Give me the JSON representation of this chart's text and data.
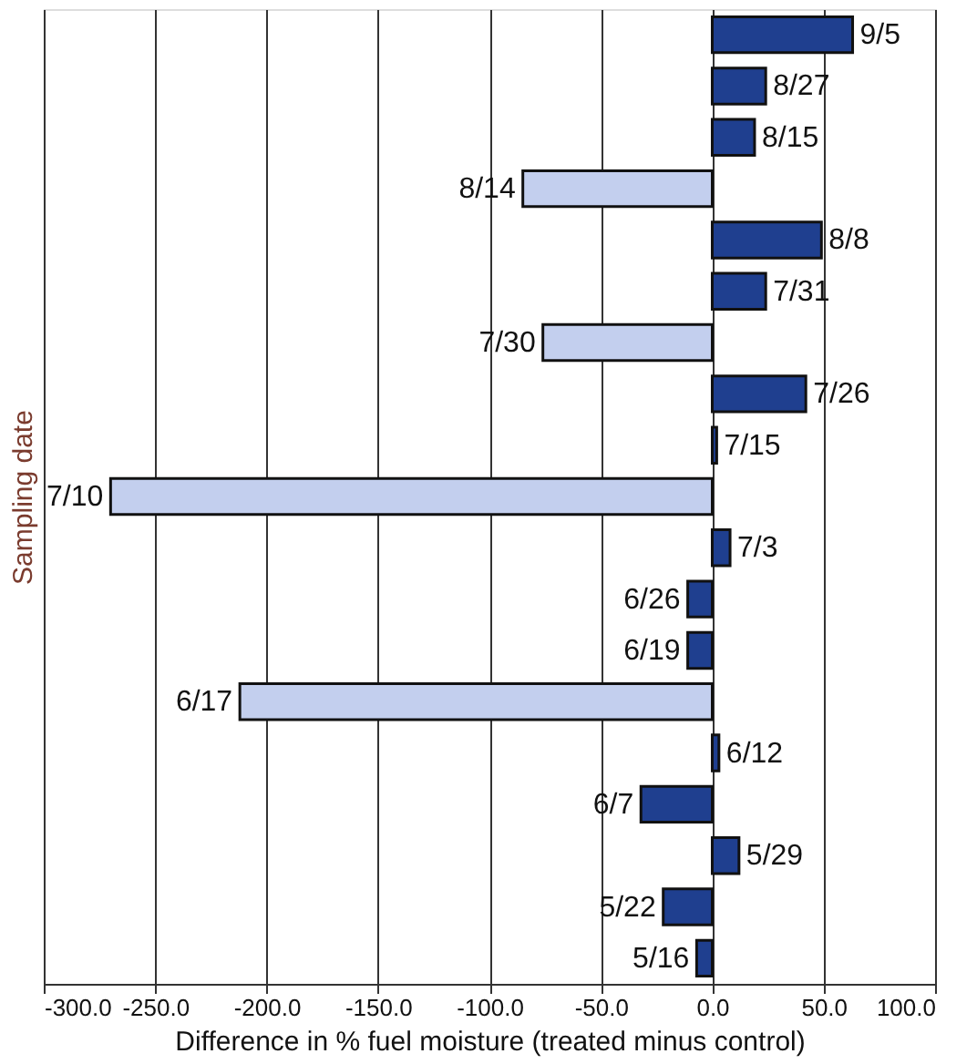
{
  "chart_data": {
    "type": "bar",
    "orientation": "horizontal",
    "xlabel": "Difference in % fuel moisture (treated minus control)",
    "ylabel": "Sampling date",
    "categories": [
      "9/5",
      "8/27",
      "8/15",
      "8/14",
      "8/8",
      "7/31",
      "7/30",
      "7/26",
      "7/15",
      "7/10",
      "7/3",
      "6/26",
      "6/19",
      "6/17",
      "6/12",
      "6/7",
      "5/29",
      "5/22",
      "5/16"
    ],
    "series": [
      {
        "color": "#1f3f8f",
        "values": [
          63,
          24,
          19,
          null,
          49,
          24,
          null,
          42,
          2,
          null,
          8,
          -11,
          -11,
          null,
          3,
          -32,
          12,
          -22,
          -7
        ]
      },
      {
        "color": "#c3cfee",
        "values": [
          null,
          null,
          null,
          -85,
          null,
          null,
          -76,
          null,
          null,
          -270,
          null,
          null,
          null,
          -212,
          null,
          null,
          null,
          null,
          null
        ]
      }
    ],
    "xlim": [
      -300,
      100
    ],
    "xticks": [
      {
        "value": -300,
        "label": "-300.0"
      },
      {
        "value": -250,
        "label": "-250.0"
      },
      {
        "value": -200,
        "label": "-200.0"
      },
      {
        "value": -150,
        "label": "-150.0"
      },
      {
        "value": -100,
        "label": "-100.0"
      },
      {
        "value": -50,
        "label": "-50.0"
      },
      {
        "value": 0,
        "label": "0.0"
      },
      {
        "value": 50,
        "label": "50.0"
      },
      {
        "value": 100,
        "label": "100.0"
      }
    ],
    "grid": "x",
    "tick_labels": "x"
  }
}
